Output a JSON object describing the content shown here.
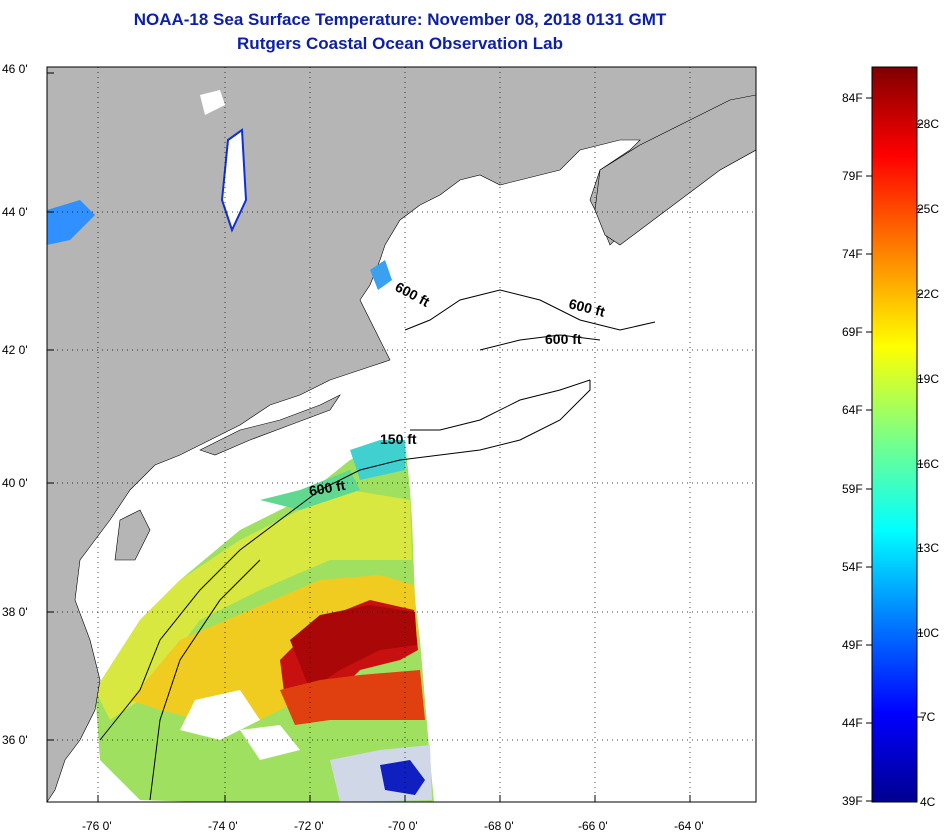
{
  "header": {
    "title": "NOAA-18 Sea Surface Temperature:  November 08, 2018 0131 GMT",
    "subtitle": "Rutgers Coastal Ocean Observation Lab"
  },
  "map": {
    "lat_ticks": [
      "46 0'",
      "44 0'",
      "42 0'",
      "40 0'",
      "38 0'",
      "36 0'"
    ],
    "lon_ticks": [
      "-76 0'",
      "-74 0'",
      "-72 0'",
      "-70 0'",
      "-68 0'",
      "-66 0'",
      "-64 0'"
    ],
    "contour_labels": [
      "600 ft",
      "600 ft",
      "600 ft",
      "150 ft",
      "600 ft"
    ],
    "colors": {
      "land": "#b5b5b5",
      "border": "#000000",
      "grid": "#000000"
    }
  },
  "colorbar": {
    "fahrenheit_labels": [
      "84F",
      "79F",
      "74F",
      "69F",
      "64F",
      "59F",
      "54F",
      "49F",
      "44F",
      "39F"
    ],
    "celsius_labels": [
      "28C",
      "25C",
      "22C",
      "19C",
      "16C",
      "13C",
      "10C",
      "7C",
      "4C"
    ],
    "gradient": [
      "#00008f",
      "#0000ff",
      "#0080ff",
      "#00ffff",
      "#80ff80",
      "#ffff00",
      "#ff8000",
      "#ff0000",
      "#800000"
    ]
  }
}
